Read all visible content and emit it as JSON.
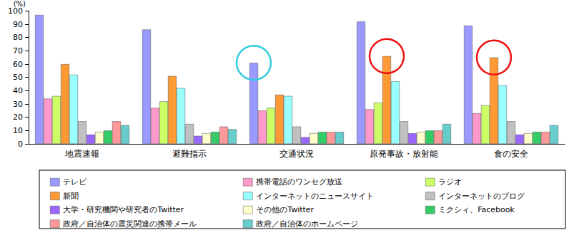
{
  "chart_data": {
    "type": "bar",
    "ylabel": "(%)",
    "categories": [
      "地震速報",
      "避難指示",
      "交通状況",
      "原発事故・放射能",
      "食の安全"
    ],
    "series": [
      {
        "name": "テレビ",
        "color": "#9999ff",
        "values": [
          97,
          86,
          61,
          92,
          89
        ]
      },
      {
        "name": "携帯電話のワンセグ放送",
        "color": "#ff99cc",
        "values": [
          34,
          27,
          25,
          26,
          23
        ]
      },
      {
        "name": "ラジオ",
        "color": "#ccff66",
        "values": [
          36,
          32,
          27,
          31,
          29
        ]
      },
      {
        "name": "新聞",
        "color": "#ff9933",
        "values": [
          60,
          51,
          37,
          66,
          65
        ]
      },
      {
        "name": "インターネットのニュースサイト",
        "color": "#99ffff",
        "values": [
          52,
          42,
          36,
          47,
          44
        ]
      },
      {
        "name": "インターネットのブログ",
        "color": "#c0c0c0",
        "values": [
          17,
          15,
          13,
          17,
          17
        ]
      },
      {
        "name": "大学・研究機関や研究者のTwitter",
        "color": "#9966ff",
        "values": [
          7,
          6,
          5,
          8,
          7
        ]
      },
      {
        "name": "その他のTwitter",
        "color": "#ffffcc",
        "values": [
          9,
          8,
          8,
          9,
          8
        ]
      },
      {
        "name": "ミクシィ、Facebook",
        "color": "#33cc66",
        "values": [
          10,
          9,
          9,
          10,
          9
        ]
      },
      {
        "name": "政府／自治体の震災関連の携帯メール",
        "color": "#ff9999",
        "values": [
          17,
          13,
          9,
          10,
          9
        ]
      },
      {
        "name": "政府／自治体のホームページ",
        "color": "#66cccc",
        "values": [
          14,
          11,
          9,
          15,
          14
        ]
      }
    ],
    "ylim": [
      0,
      100
    ],
    "yticks": [
      0,
      10,
      20,
      30,
      40,
      50,
      60,
      70,
      80,
      90,
      100
    ],
    "grid": false,
    "legend": "bottom"
  }
}
